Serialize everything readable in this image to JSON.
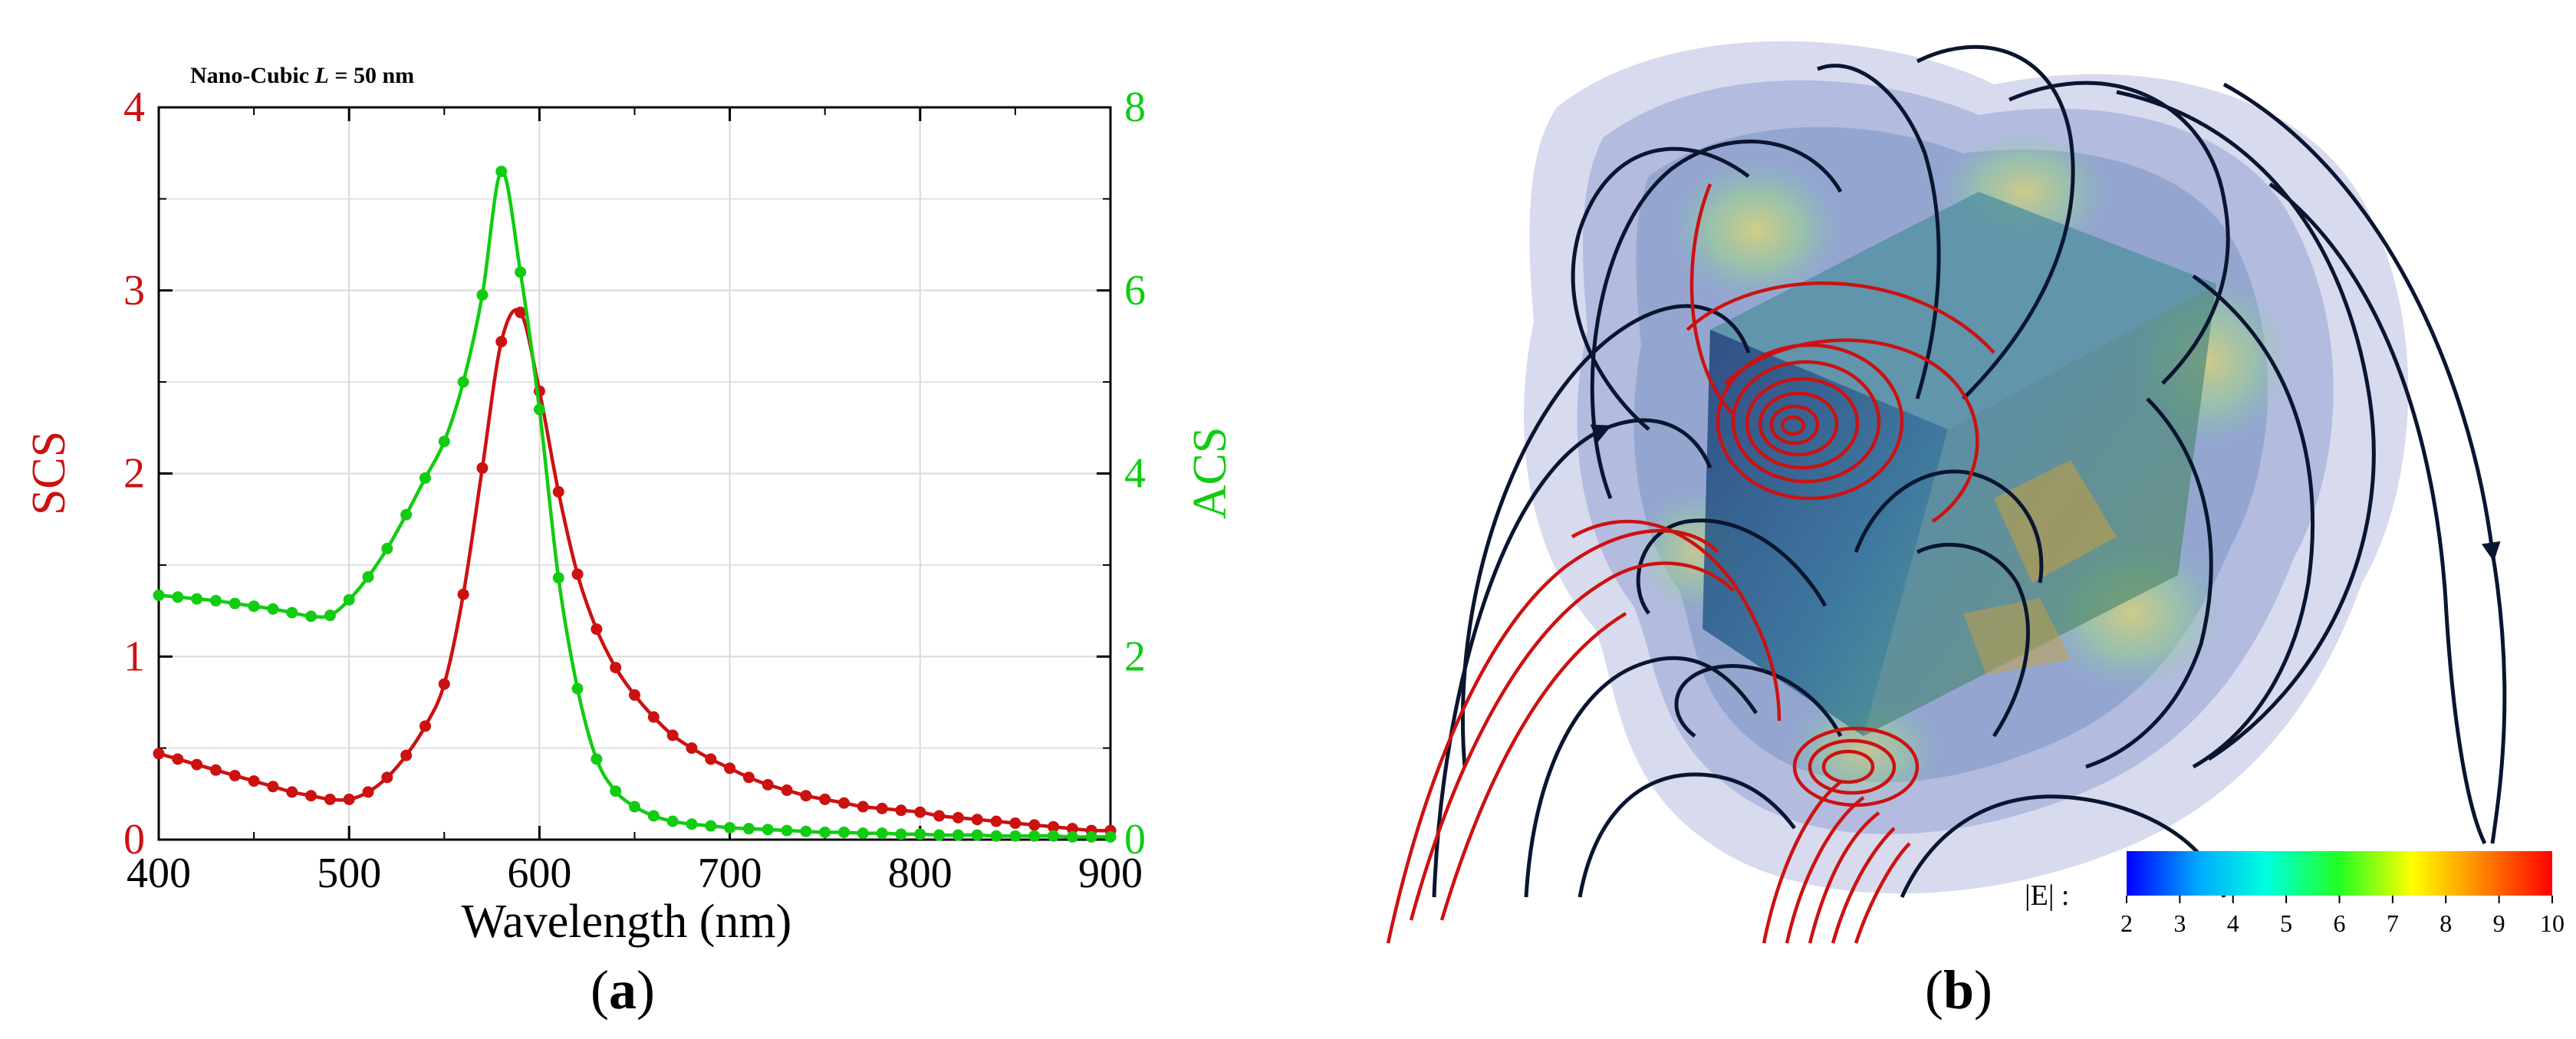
{
  "chart_data": {
    "type": "line",
    "title": "Nano-Cubic L = 50 nm",
    "title_parts": {
      "prefix": "Nano-Cubic ",
      "italic": "L",
      "suffix": " = 50 nm"
    },
    "xlabel": "Wavelength (nm)",
    "ylabel_left": "SCS",
    "ylabel_right": "ACS",
    "xlim": [
      400,
      900
    ],
    "ylim_left": [
      0,
      4
    ],
    "ylim_right": [
      0,
      8
    ],
    "x_ticks": [
      "400",
      "500",
      "600",
      "700",
      "800",
      "900"
    ],
    "y_ticks_left": [
      "0",
      "1",
      "2",
      "3",
      "4"
    ],
    "y_ticks_right": [
      "0",
      "2",
      "4",
      "6",
      "8"
    ],
    "grid": true,
    "colors": {
      "scs": "#cc1111",
      "acs": "#11cc11",
      "axis": "#000000",
      "grid": "#d9d9d9"
    },
    "x": [
      400,
      410,
      420,
      430,
      440,
      450,
      460,
      470,
      480,
      490,
      500,
      510,
      520,
      530,
      540,
      550,
      560,
      570,
      580,
      590,
      600,
      610,
      620,
      630,
      640,
      650,
      660,
      670,
      680,
      690,
      700,
      710,
      720,
      730,
      740,
      750,
      760,
      770,
      780,
      790,
      800,
      810,
      820,
      830,
      840,
      850,
      860,
      870,
      880,
      890,
      900
    ],
    "series": [
      {
        "name": "SCS",
        "axis": "left",
        "color": "#cc1111",
        "values": [
          0.47,
          0.44,
          0.41,
          0.38,
          0.35,
          0.32,
          0.29,
          0.26,
          0.24,
          0.22,
          0.22,
          0.26,
          0.34,
          0.46,
          0.62,
          0.85,
          1.34,
          2.03,
          2.72,
          2.88,
          2.45,
          1.9,
          1.45,
          1.15,
          0.94,
          0.79,
          0.67,
          0.57,
          0.5,
          0.44,
          0.39,
          0.34,
          0.3,
          0.27,
          0.24,
          0.22,
          0.2,
          0.18,
          0.17,
          0.16,
          0.15,
          0.13,
          0.12,
          0.11,
          0.1,
          0.09,
          0.08,
          0.07,
          0.06,
          0.05,
          0.05
        ]
      },
      {
        "name": "ACS",
        "axis": "right",
        "color": "#11cc11",
        "values": [
          2.67,
          2.65,
          2.63,
          2.61,
          2.58,
          2.55,
          2.52,
          2.48,
          2.44,
          2.45,
          2.62,
          2.87,
          3.18,
          3.55,
          3.95,
          4.35,
          5.0,
          5.95,
          7.3,
          6.2,
          4.7,
          2.86,
          1.65,
          0.88,
          0.53,
          0.36,
          0.26,
          0.2,
          0.17,
          0.15,
          0.13,
          0.12,
          0.11,
          0.1,
          0.09,
          0.08,
          0.08,
          0.07,
          0.07,
          0.06,
          0.06,
          0.05,
          0.05,
          0.05,
          0.04,
          0.04,
          0.04,
          0.04,
          0.03,
          0.03,
          0.03
        ]
      }
    ]
  },
  "panel_b": {
    "colorbar_label": "|E| :",
    "colorbar_ticks": [
      "2",
      "3",
      "4",
      "5",
      "6",
      "7",
      "8",
      "9",
      "10"
    ],
    "colorbar_colors": [
      "#0000ff",
      "#00aaff",
      "#00ffdd",
      "#22ff22",
      "#ffff00",
      "#ff8800",
      "#ff0000"
    ],
    "field_line_colors": {
      "dark": "#0a1530",
      "red": "#cc1111"
    },
    "cube_colors": {
      "halo": "#a9add8",
      "glow": "#9fd98a",
      "face_dark": "#2a4f86",
      "face_mid": "#3d8aa3"
    }
  },
  "captions": {
    "a_open": "(",
    "a_letter": "a",
    "a_close": ")",
    "b_open": "(",
    "b_letter": "b",
    "b_close": ")"
  }
}
